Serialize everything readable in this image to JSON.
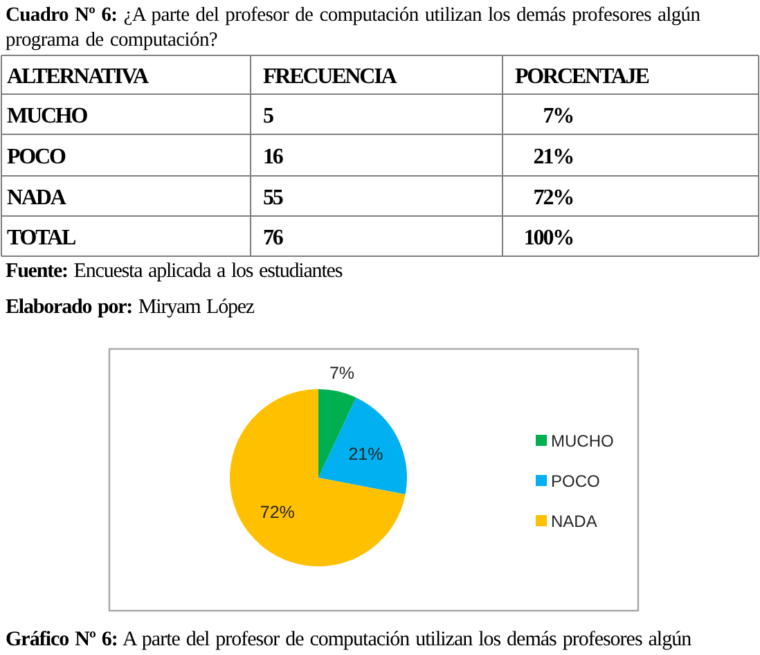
{
  "chart_data": [
    {
      "type": "other",
      "title": "Cuadro Nº 6: ¿A parte del profesor de computación utilizan los demás profesores algún programa de computación?",
      "annotations": [
        "ALTERNATIVA",
        "FRECUENCIA",
        "PORCENTAJE",
        "MUCHO",
        "5",
        "7%",
        "POCO",
        "16",
        "21%",
        "NADA",
        "55",
        "72%",
        "TOTAL",
        "76",
        "100%",
        "Fuente: Encuesta aplicada a los estudiantes",
        "Elaborado por: Miryam López"
      ]
    },
    {
      "type": "pie",
      "title": "Gráfico Nº 6: A parte del profesor de computación utilizan los demás profesores algún",
      "categories": [
        "MUCHO",
        "POCO",
        "NADA"
      ],
      "values": [
        7,
        21,
        72
      ],
      "colors": [
        "#00b050",
        "#00b0f0",
        "#ffc000"
      ],
      "value_labels": [
        "7%",
        "21%",
        "72%"
      ],
      "legend": "right"
    }
  ]
}
